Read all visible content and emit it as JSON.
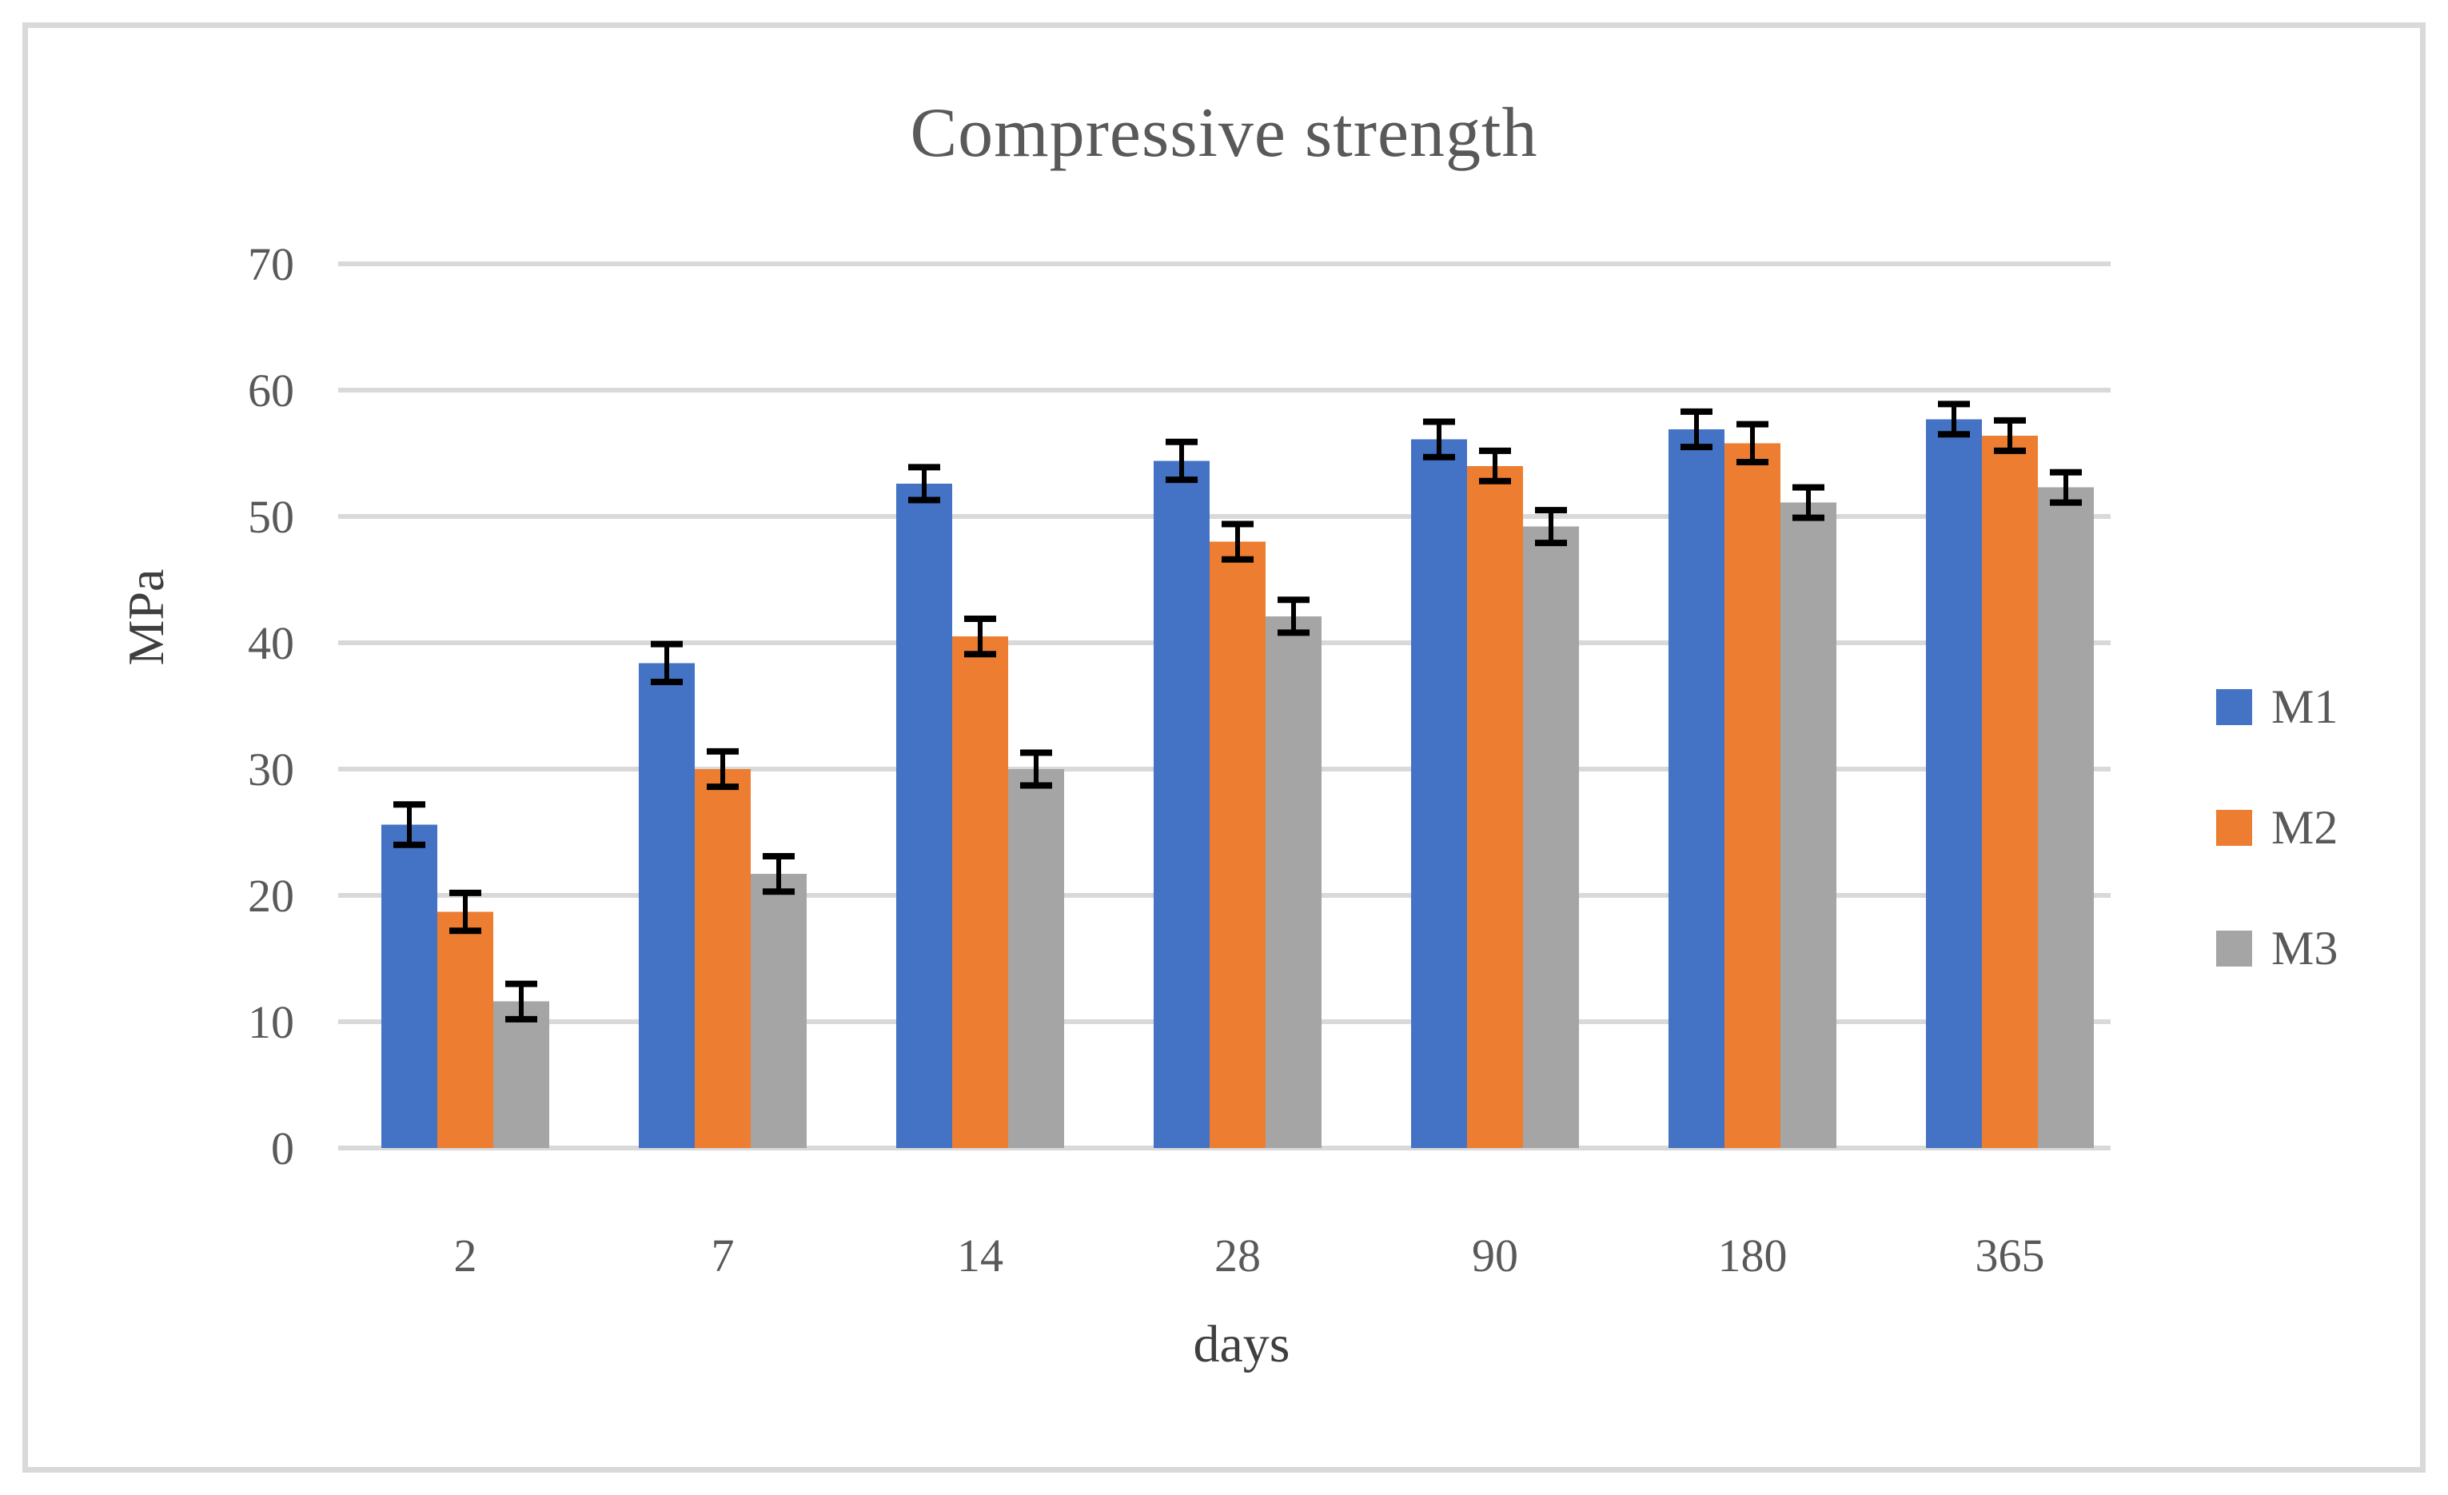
{
  "title": "Compressive strength",
  "chart_data": {
    "type": "bar",
    "title": "Compressive strength",
    "xlabel": "days",
    "ylabel": "MPa",
    "categories": [
      "2",
      "7",
      "14",
      "28",
      "90",
      "180",
      "365"
    ],
    "series": [
      {
        "name": "M1",
        "color": "#4472C4",
        "values": [
          25.6,
          38.4,
          52.6,
          54.4,
          56.1,
          56.9,
          57.7
        ],
        "errors": [
          1.6,
          1.5,
          1.3,
          1.5,
          1.4,
          1.4,
          1.2
        ]
      },
      {
        "name": "M2",
        "color": "#ED7D31",
        "values": [
          18.7,
          30.0,
          40.5,
          48.0,
          54.0,
          55.8,
          56.4
        ],
        "errors": [
          1.5,
          1.4,
          1.4,
          1.4,
          1.2,
          1.5,
          1.2
        ]
      },
      {
        "name": "M3",
        "color": "#A5A5A5",
        "values": [
          11.6,
          21.7,
          30.0,
          42.1,
          49.2,
          51.1,
          52.3
        ],
        "errors": [
          1.4,
          1.4,
          1.3,
          1.3,
          1.3,
          1.2,
          1.2
        ]
      }
    ],
    "ylim": [
      0,
      70
    ],
    "ytick_step": 10,
    "yticks": [
      "0",
      "10",
      "20",
      "30",
      "40",
      "50",
      "60",
      "70"
    ],
    "grid": true,
    "error_bars": true,
    "legend_position": "right"
  },
  "colors": {
    "background": "#FFFFFF",
    "frame": "#D9D9D9",
    "grid": "#D9D9D9",
    "tick_text": "#595959",
    "axis_title_text": "#3F3F3F",
    "title_text": "#595959",
    "error_bar": "#000000"
  }
}
